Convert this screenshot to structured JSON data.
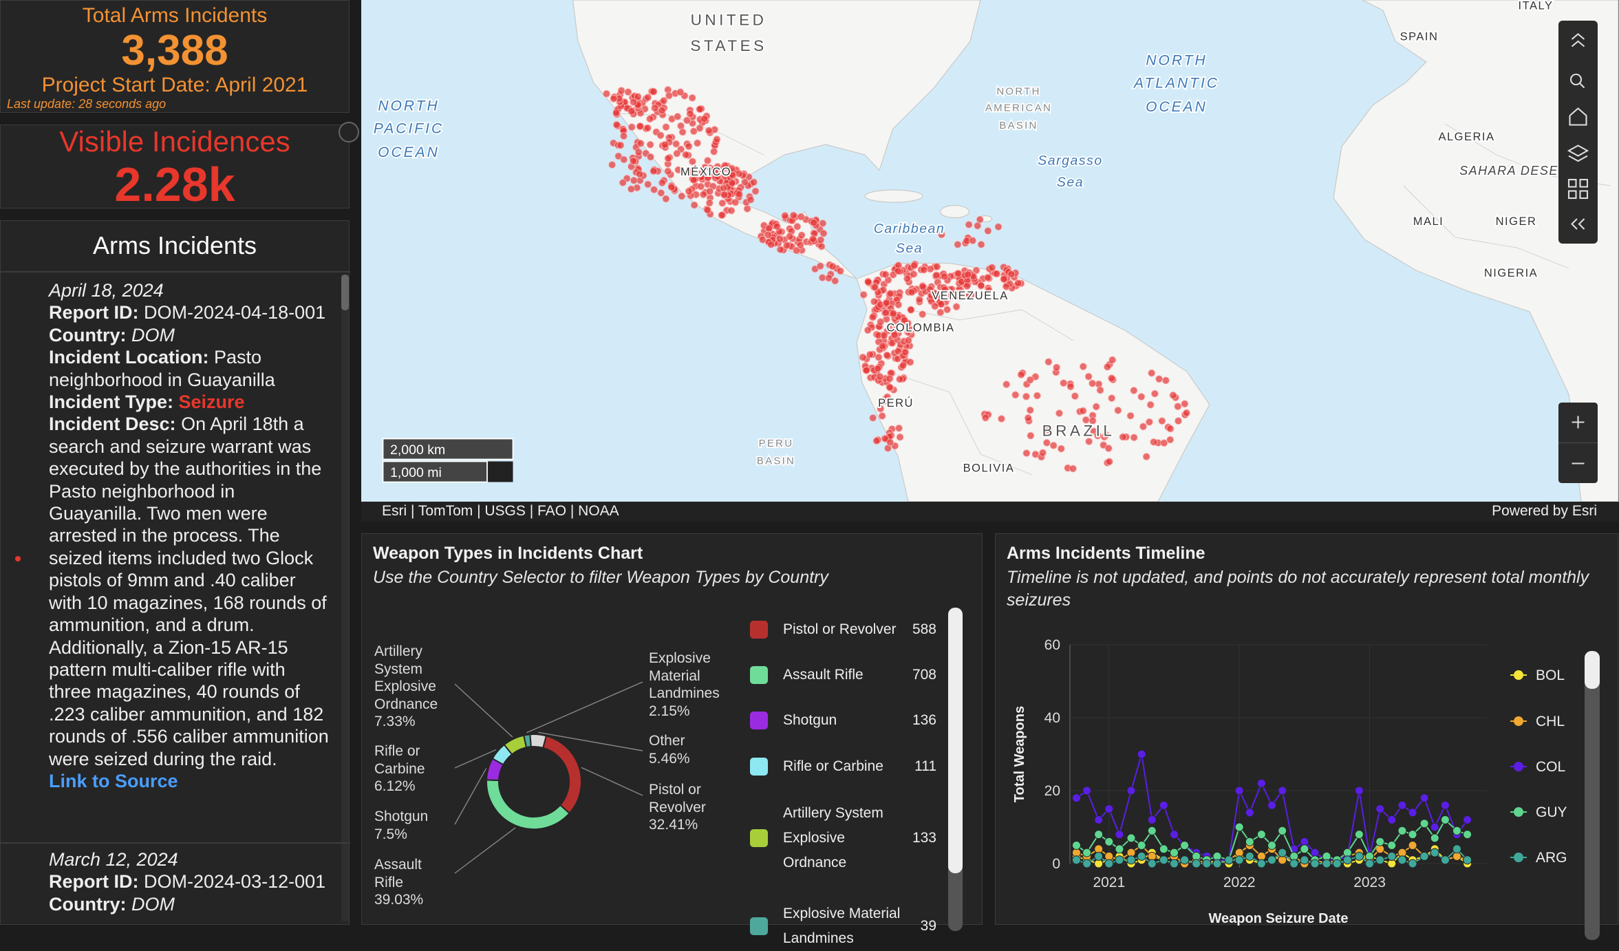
{
  "header": {
    "title": "Total Arms Incidents",
    "total": "3,388",
    "start": "Project Start Date: April 2021",
    "update": "Last update: 28 seconds ago"
  },
  "visible": {
    "title": "Visible Incidences",
    "value": "2.28k"
  },
  "incidents": {
    "title": "Arms Incidents",
    "labels": {
      "report_id": "Report ID:",
      "country": "Country:",
      "location": "Incident Location:",
      "type": "Incident Type:",
      "desc": "Incident Desc:"
    },
    "link": "Link to Source",
    "items": [
      {
        "date": "April 18, 2024",
        "report_id": "DOM-2024-04-18-001",
        "country": "DOM",
        "location": "Pasto neighborhood in Guayanilla",
        "type": "Seizure",
        "desc": "On April 18th a search and seizure warrant was executed by the authorities in the Pasto neighborhood in Guayanilla. Two men were arrested in the process. The seized items included two Glock pistols of 9mm and .40 caliber with 10 magazines, 168 rounds of ammunition, and a drum. Additionally, a Zion-15 AR-15 pattern multi-caliber rifle with three magazines, 40 rounds of .223 caliber ammunition, and 182 rounds of .556 caliber ammunition were seized during the raid."
      },
      {
        "date": "March 12, 2024",
        "report_id": "DOM-2024-03-12-001",
        "country": "DOM"
      }
    ]
  },
  "map": {
    "labels": [
      "UNITED",
      "STATES",
      "NORTH",
      "PACIFIC",
      "OCEAN",
      "NORTH",
      "ATLANTIC",
      "OCEAN",
      "NORTH",
      "AMERICAN",
      "BASIN",
      "Sargasso",
      "Sea",
      "Caribbean",
      "Sea",
      "PERU",
      "BASIN",
      "MÉXICO",
      "VENEZUELA",
      "COLOMBIA",
      "PERÚ",
      "BRAZIL",
      "BOLIVIA",
      "SPAIN",
      "ITALY",
      "ALGERIA",
      "SAHARA DESE",
      "MALI",
      "NIGER",
      "NIGERIA"
    ],
    "scale": [
      "2,000 km",
      "1,000 mi"
    ],
    "attribution": "Esri | TomTom | USGS | FAO | NOAA",
    "powered": "Powered by Esri"
  },
  "chart_data": [
    {
      "type": "pie",
      "title": "Weapon Types in Incidents Chart",
      "subtitle": "Use the Country Selector to filter Weapon Types by Country",
      "categories": [
        "Pistol or Revolver",
        "Assault Rifle",
        "Shotgun",
        "Rifle or Carbine",
        "Artillery System Explosive Ordnance",
        "Explosive Material Landmines",
        "Other"
      ],
      "values": [
        32.41,
        39.03,
        7.5,
        6.12,
        7.33,
        2.15,
        5.46
      ],
      "value_labels": [
        "32.41%",
        "39.03%",
        "7.5%",
        "6.12%",
        "7.33%",
        "2.15%",
        "5.46%"
      ],
      "counts": [
        588,
        708,
        136,
        111,
        133,
        39,
        null
      ],
      "colors": [
        "#b8302e",
        "#6fdc9a",
        "#9b2be0",
        "#8ee8f2",
        "#a8cf3a",
        "#4fa89c",
        "#d8d8d8"
      ]
    },
    {
      "type": "line",
      "title": "Arms Incidents Timeline",
      "subtitle": "Timeline is not updated, and points do not accurately represent total monthly seizures",
      "x_label": "Weapon Seizure Date",
      "y_label": "Total Weapons",
      "x": [
        2020.75,
        2020.83,
        2020.92,
        2021,
        2021.08,
        2021.17,
        2021.25,
        2021.33,
        2021.42,
        2021.5,
        2021.58,
        2021.67,
        2021.75,
        2021.83,
        2021.92,
        2022,
        2022.08,
        2022.17,
        2022.25,
        2022.33,
        2022.42,
        2022.5,
        2022.58,
        2022.67,
        2022.75,
        2022.83,
        2022.92,
        2023,
        2023.08,
        2023.17,
        2023.25,
        2023.33,
        2023.42,
        2023.5,
        2023.58,
        2023.67,
        2023.75
      ],
      "xlim": [
        2020.7,
        2023.9
      ],
      "xticks": [
        2021,
        2022,
        2023
      ],
      "ylim": [
        0,
        60
      ],
      "yticks": [
        0,
        20,
        40,
        60
      ],
      "grid": true,
      "series": [
        {
          "name": "BOL",
          "color": "#f5e33a",
          "values": [
            2,
            1,
            0,
            1,
            2,
            0,
            1,
            3,
            1,
            0,
            1,
            0,
            0,
            1,
            0,
            2,
            1,
            0,
            1,
            2,
            0,
            1,
            0,
            0,
            1,
            0,
            1,
            2,
            1,
            0,
            3,
            1,
            2,
            4,
            1,
            2,
            0
          ]
        },
        {
          "name": "CHL",
          "color": "#f0a830",
          "values": [
            3,
            2,
            4,
            2,
            1,
            3,
            5,
            2,
            1,
            2,
            0,
            1,
            0,
            0,
            1,
            3,
            5,
            2,
            4,
            1,
            2,
            0,
            1,
            0,
            1,
            2,
            3,
            1,
            4,
            2,
            3,
            5,
            2,
            3,
            1,
            2,
            1
          ]
        },
        {
          "name": "COL",
          "color": "#5a1ee6",
          "values": [
            18,
            20,
            12,
            15,
            8,
            20,
            30,
            12,
            16,
            8,
            5,
            3,
            2,
            1,
            1,
            20,
            14,
            22,
            16,
            20,
            4,
            6,
            3,
            1,
            1,
            2,
            20,
            2,
            15,
            12,
            16,
            14,
            18,
            10,
            16,
            8,
            12
          ]
        },
        {
          "name": "GUY",
          "color": "#5fd68f",
          "values": [
            5,
            3,
            8,
            6,
            4,
            7,
            5,
            9,
            4,
            3,
            5,
            2,
            1,
            2,
            1,
            10,
            6,
            8,
            5,
            9,
            2,
            4,
            1,
            2,
            1,
            3,
            8,
            2,
            6,
            5,
            9,
            8,
            11,
            7,
            12,
            9,
            8
          ]
        },
        {
          "name": "ARG",
          "color": "#3fa89a",
          "values": [
            1,
            0,
            2,
            0,
            1,
            1,
            2,
            0,
            1,
            0,
            1,
            0,
            0,
            0,
            1,
            1,
            2,
            0,
            1,
            3,
            0,
            1,
            0,
            0,
            0,
            1,
            2,
            0,
            1,
            2,
            1,
            0,
            2,
            3,
            1,
            4,
            1
          ]
        }
      ]
    }
  ]
}
